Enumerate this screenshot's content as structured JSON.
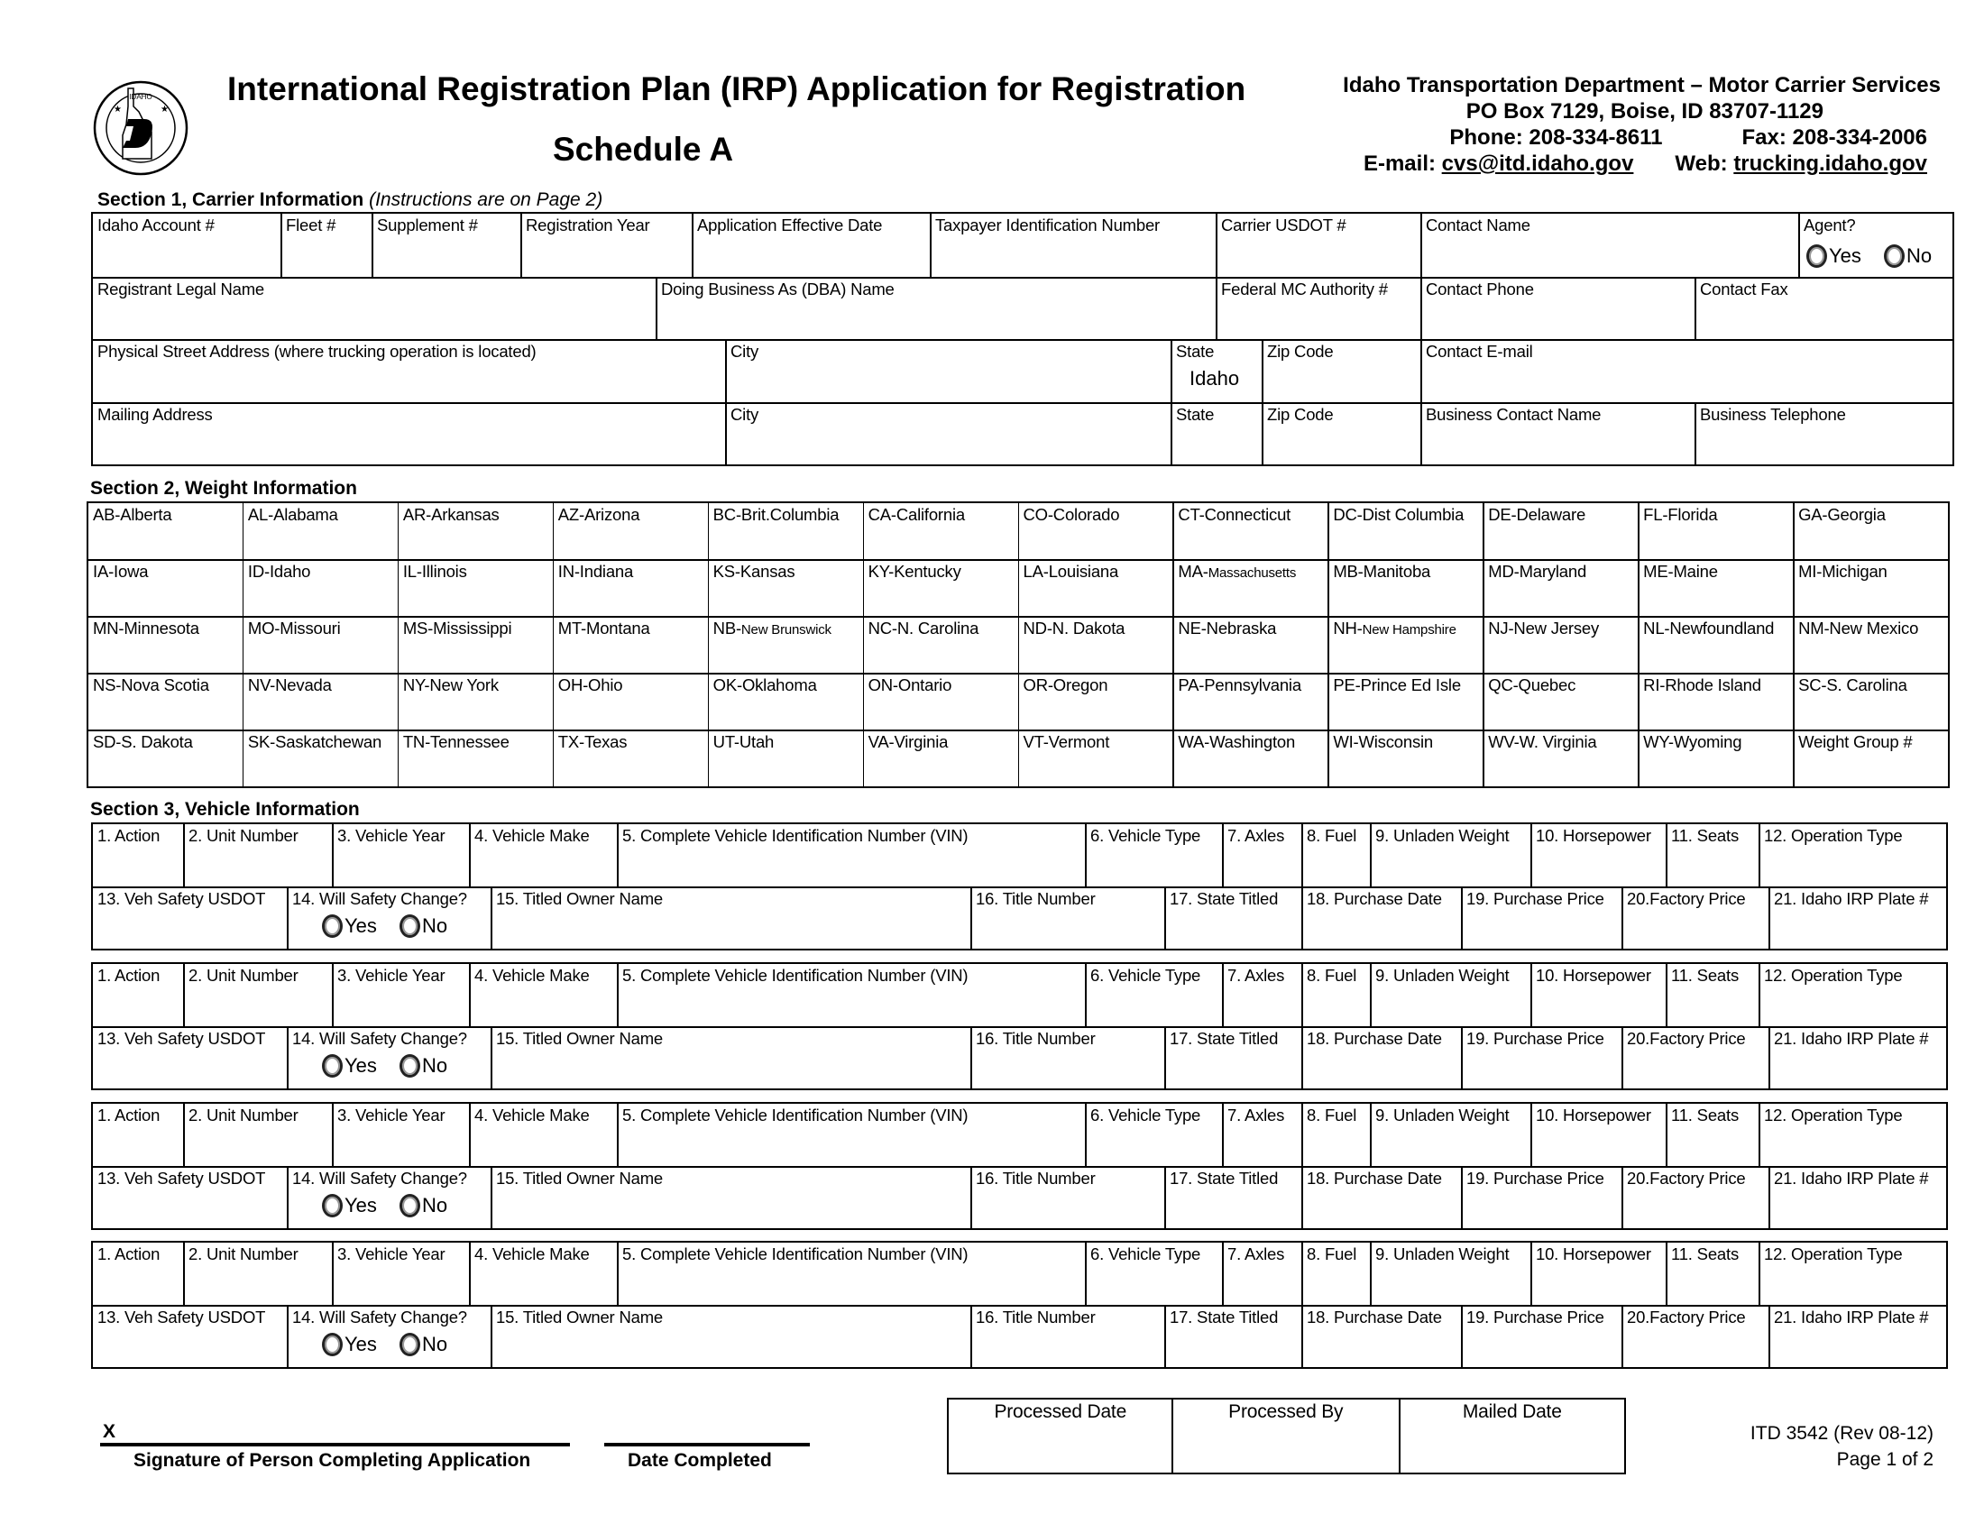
{
  "header": {
    "title": "International Registration Plan (IRP) Application for Registration",
    "subtitle": "Schedule A",
    "logo_text": "IDAHO TRANSPORTATION DEPARTMENT",
    "org": "Idaho Transportation Department – Motor Carrier Services",
    "address": "PO Box 7129,  Boise, ID 83707-1129",
    "phone": "Phone: 208-334-8611",
    "fax": "Fax: 208-334-2006",
    "email_label": "E-mail: ",
    "email": "cvs@itd.idaho.gov",
    "web_label": "Web: ",
    "web": "trucking.idaho.gov"
  },
  "section1": {
    "heading": "Section 1, Carrier Information ",
    "note": "(Instructions are on Page 2)",
    "rows": [
      [
        "Idaho Account #",
        "Fleet #",
        "Supplement #",
        "Registration Year",
        "Application Effective Date",
        "Taxpayer Identification Number",
        "Carrier USDOT #",
        "Contact Name",
        "Agent?"
      ],
      [
        "Registrant Legal Name",
        "Doing Business As (DBA) Name",
        "Federal MC Authority #",
        "Contact Phone",
        "Contact Fax"
      ],
      [
        "Physical Street Address (where trucking operation is located)",
        "City",
        "State",
        "Zip Code",
        "Contact E-mail"
      ],
      [
        "Mailing Address",
        "City",
        "State",
        "Zip Code",
        "Business Contact Name",
        "Business Telephone"
      ]
    ],
    "state_value": "Idaho",
    "agent_yes": "Yes",
    "agent_no": "No"
  },
  "section2": {
    "heading": "Section 2, Weight Information",
    "states": [
      [
        "AB-Alberta",
        "AL-Alabama",
        "AR-Arkansas",
        "AZ-Arizona",
        "BC-Brit.Columbia",
        "CA-California",
        "CO-Colorado",
        "CT-Connecticut",
        "DC-Dist Columbia",
        "DE-Delaware",
        "FL-Florida",
        "GA-Georgia"
      ],
      [
        "IA-Iowa",
        "ID-Idaho",
        "IL-Illinois",
        "IN-Indiana",
        "KS-Kansas",
        "KY-Kentucky",
        "LA-Louisiana",
        "MA-Massachusetts",
        "MB-Manitoba",
        "MD-Maryland",
        "ME-Maine",
        "MI-Michigan"
      ],
      [
        "MN-Minnesota",
        "MO-Missouri",
        "MS-Mississippi",
        "MT-Montana",
        "NB-New Brunswick",
        "NC-N. Carolina",
        "ND-N. Dakota",
        "NE-Nebraska",
        "NH-New Hampshire",
        "NJ-New Jersey",
        "NL-Newfoundland",
        "NM-New Mexico"
      ],
      [
        "NS-Nova Scotia",
        "NV-Nevada",
        "NY-New York",
        "OH-Ohio",
        "OK-Oklahoma",
        "ON-Ontario",
        "OR-Oregon",
        "PA-Pennsylvania",
        "PE-Prince Ed Isle",
        "QC-Quebec",
        "RI-Rhode Island",
        "SC-S. Carolina"
      ],
      [
        "SD-S. Dakota",
        "SK-Saskatchewan",
        "TN-Tennessee",
        "TX-Texas",
        "UT-Utah",
        "VA-Virginia",
        "VT-Vermont",
        "WA-Washington",
        "WI-Wisconsin",
        "WV-W. Virginia",
        "WY-Wyoming",
        "Weight Group #"
      ]
    ]
  },
  "section3": {
    "heading": "Section 3, Vehicle Information",
    "row1": [
      "1. Action",
      "2. Unit Number",
      "3. Vehicle Year",
      "4. Vehicle Make",
      "5. Complete Vehicle Identification Number (VIN)",
      "6. Vehicle Type",
      "7. Axles",
      "8. Fuel",
      "9. Unladen Weight",
      "10. Horsepower",
      "11. Seats",
      "12. Operation Type"
    ],
    "row2": [
      "13. Veh Safety USDOT",
      "14. Will Safety Change?",
      "15. Titled Owner Name",
      "16. Title Number",
      "17. State Titled",
      "18. Purchase Date",
      "19. Purchase Price",
      "20.Factory Price",
      "21. Idaho IRP Plate #"
    ],
    "radio_yes": "Yes",
    "radio_no": "No"
  },
  "footer": {
    "x_mark": "X",
    "signature_label": "Signature of Person Completing Application",
    "date_label": "Date Completed",
    "office": [
      "Processed Date",
      "Processed By",
      "Mailed Date"
    ],
    "form_id": "ITD 3542   (Rev 08-12)",
    "page": "Page 1 of 2"
  }
}
